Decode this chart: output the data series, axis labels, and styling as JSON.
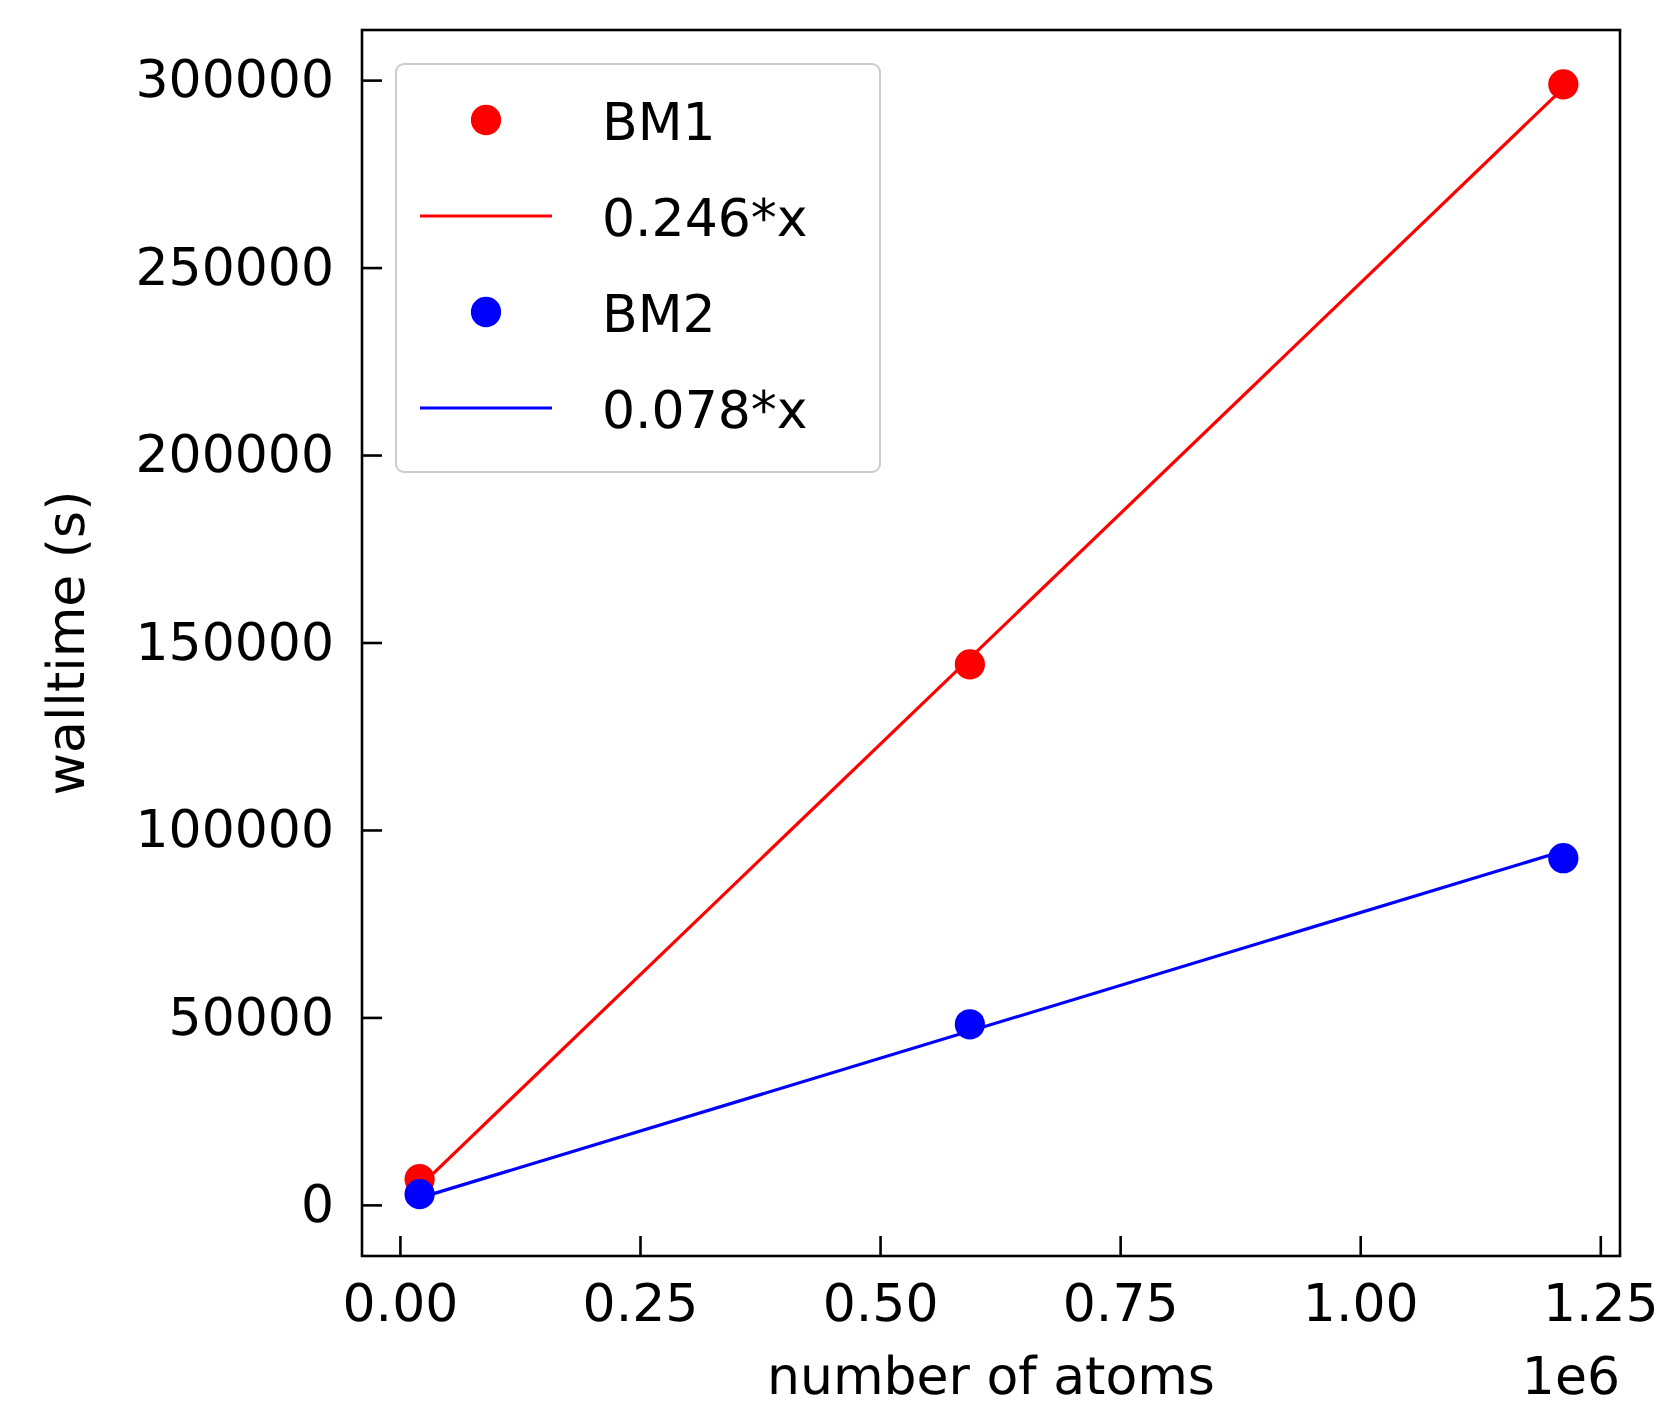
{
  "chart_data": {
    "type": "scatter",
    "xlabel": "number of atoms",
    "ylabel": "walltime (s)",
    "xlim": [
      -0.04,
      1.27
    ],
    "ylim": [
      -13500,
      313500
    ],
    "xticks": [
      {
        "value": 0,
        "label": "0.00"
      },
      {
        "value": 0.25,
        "label": "0.25"
      },
      {
        "value": 0.5,
        "label": "0.50"
      },
      {
        "value": 0.75,
        "label": "0.75"
      },
      {
        "value": 1,
        "label": "1.00"
      },
      {
        "value": 1.25,
        "label": "1.25"
      }
    ],
    "yticks": [
      0,
      50000,
      100000,
      150000,
      200000,
      250000,
      300000
    ],
    "annotations": [
      "1e6"
    ],
    "legend": "top left",
    "marker": "circle",
    "series": [
      {
        "name": "BM1",
        "color": "#ff0000",
        "x": [
          0.02,
          0.593,
          1.211
        ],
        "values": [
          7000,
          144300,
          299000
        ]
      },
      {
        "name": "0.246*x",
        "type": "line",
        "marker": "none",
        "color": "#ff0000",
        "x": [
          0.02,
          1.211
        ],
        "values": [
          5000,
          298000
        ]
      },
      {
        "name": "BM2",
        "color": "#0000ff",
        "x": [
          0.02,
          0.593,
          1.211
        ],
        "values": [
          3000,
          48300,
          92600
        ]
      },
      {
        "name": "0.078*x",
        "type": "line",
        "marker": "none",
        "color": "#0000ff",
        "x": [
          0.02,
          1.211
        ],
        "values": [
          2000,
          94500
        ]
      }
    ]
  }
}
